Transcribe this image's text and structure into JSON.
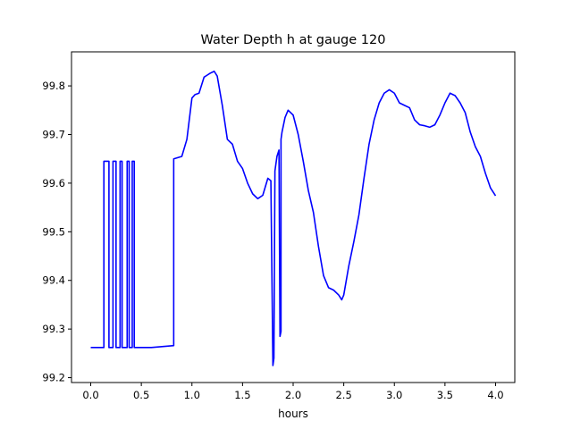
{
  "chart_data": {
    "type": "line",
    "title": "Water Depth h at gauge 120",
    "xlabel": "hours",
    "ylabel": "",
    "xlim": [
      -0.19,
      4.19
    ],
    "ylim": [
      99.19,
      99.87
    ],
    "xticks": [
      0.0,
      0.5,
      1.0,
      1.5,
      2.0,
      2.5,
      3.0,
      3.5,
      4.0
    ],
    "xtick_labels": [
      "0.0",
      "0.5",
      "1.0",
      "1.5",
      "2.0",
      "2.5",
      "3.0",
      "3.5",
      "4.0"
    ],
    "yticks": [
      99.2,
      99.3,
      99.4,
      99.5,
      99.6,
      99.7,
      99.8
    ],
    "ytick_labels": [
      "99.2",
      "99.3",
      "99.4",
      "99.5",
      "99.6",
      "99.7",
      "99.8"
    ],
    "grid": false,
    "line_color": "#0000ff",
    "series": [
      {
        "x": [
          0.0,
          0.13,
          0.13,
          0.18,
          0.18,
          0.22,
          0.22,
          0.25,
          0.25,
          0.29,
          0.29,
          0.31,
          0.31,
          0.36,
          0.36,
          0.38,
          0.38,
          0.41,
          0.41,
          0.43,
          0.43,
          0.6,
          0.82,
          0.82,
          0.9,
          0.95,
          1.0,
          1.03,
          1.07,
          1.12,
          1.15,
          1.18,
          1.22,
          1.25,
          1.3,
          1.35,
          1.4,
          1.45,
          1.5,
          1.55,
          1.6,
          1.65,
          1.7,
          1.75,
          1.78,
          1.8,
          1.81,
          1.82,
          1.83,
          1.84,
          1.86,
          1.87,
          1.88,
          1.88,
          1.89,
          1.92,
          1.95,
          2.0,
          2.05,
          2.1,
          2.15,
          2.2,
          2.25,
          2.3,
          2.35,
          2.4,
          2.45,
          2.48,
          2.5,
          2.55,
          2.6,
          2.65,
          2.7,
          2.75,
          2.8,
          2.85,
          2.9,
          2.95,
          3.0,
          3.05,
          3.1,
          3.15,
          3.2,
          3.25,
          3.3,
          3.35,
          3.4,
          3.45,
          3.5,
          3.55,
          3.6,
          3.65,
          3.7,
          3.75,
          3.8,
          3.85,
          3.9,
          3.95,
          4.0
        ],
        "y": [
          99.262,
          99.262,
          99.645,
          99.645,
          99.262,
          99.262,
          99.645,
          99.645,
          99.262,
          99.262,
          99.645,
          99.645,
          99.262,
          99.262,
          99.645,
          99.645,
          99.262,
          99.262,
          99.645,
          99.645,
          99.262,
          99.262,
          99.266,
          99.65,
          99.655,
          99.69,
          99.775,
          99.782,
          99.785,
          99.818,
          99.822,
          99.826,
          99.83,
          99.82,
          99.76,
          99.69,
          99.68,
          99.645,
          99.63,
          99.6,
          99.578,
          99.568,
          99.575,
          99.61,
          99.605,
          99.225,
          99.24,
          99.625,
          99.64,
          99.655,
          99.668,
          99.285,
          99.295,
          99.69,
          99.705,
          99.735,
          99.75,
          99.74,
          99.7,
          99.645,
          99.585,
          99.54,
          99.47,
          99.41,
          99.385,
          99.38,
          99.37,
          99.36,
          99.37,
          99.43,
          99.48,
          99.535,
          99.61,
          99.68,
          99.73,
          99.765,
          99.785,
          99.792,
          99.785,
          99.765,
          99.76,
          99.755,
          99.73,
          99.72,
          99.718,
          99.715,
          99.72,
          99.74,
          99.765,
          99.785,
          99.78,
          99.765,
          99.745,
          99.705,
          99.675,
          99.655,
          99.62,
          99.59,
          99.574
        ]
      }
    ]
  }
}
